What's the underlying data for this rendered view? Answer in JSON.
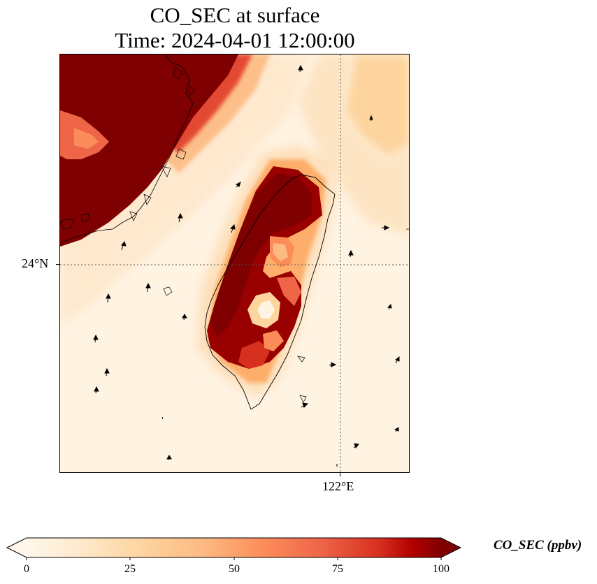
{
  "title": {
    "line1": "CO_SEC at surface",
    "line2": "Time: 2024-04-01 12:00:00"
  },
  "map": {
    "variable": "CO_SEC",
    "level": "surface",
    "colormap": "OrRd",
    "gridlines": "dotted",
    "lat_label": "24°N",
    "lon_label": "122°E"
  },
  "colorbar": {
    "label": "CO_SEC (ppbv)",
    "ticks": [
      "0",
      "25",
      "50",
      "75",
      "100"
    ],
    "min": 0,
    "max": 100,
    "extend": "both"
  },
  "colors": {
    "low": "#fff7ec",
    "mid": "#fc8d59",
    "high": "#7f0000",
    "coast": "#000000"
  }
}
